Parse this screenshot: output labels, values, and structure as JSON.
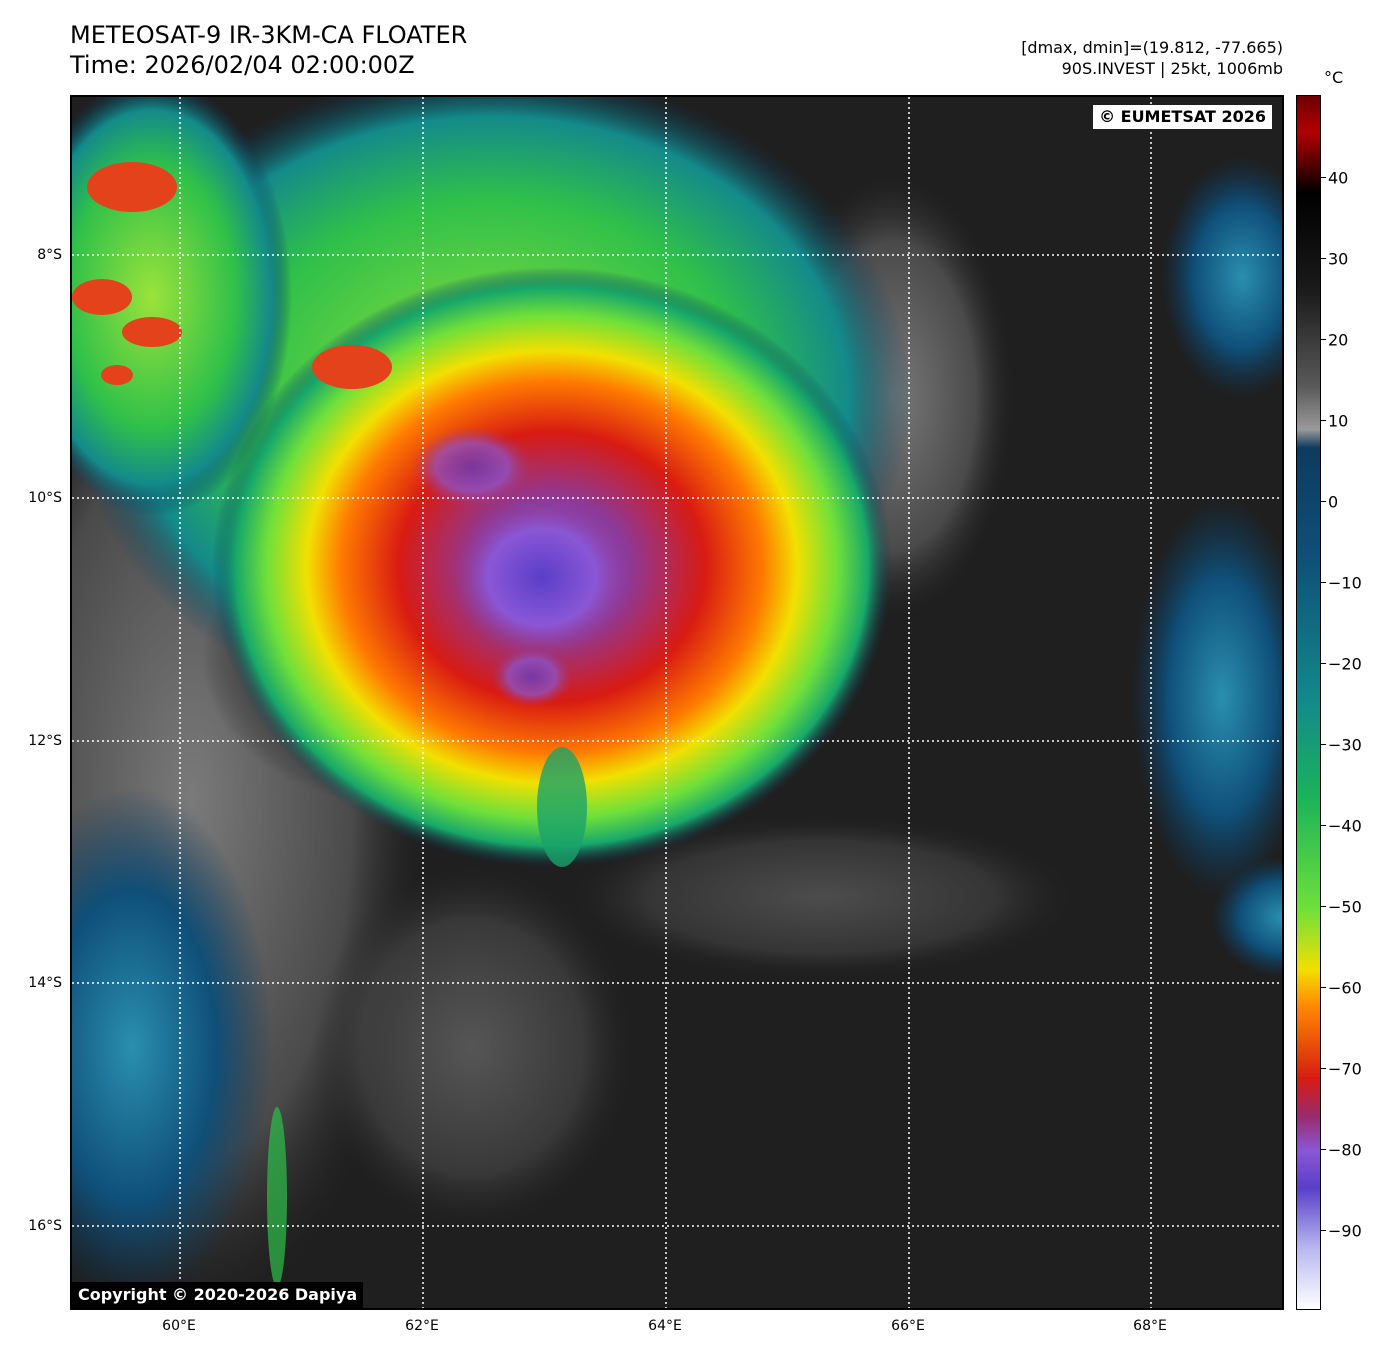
{
  "header": {
    "title_line1": "METEOSAT-9 IR-3KM-CA FLOATER",
    "title_line2": "Time: 2026/02/04 02:00:00Z",
    "info_line1": "[dmax, dmin]=(19.812, -77.665)",
    "info_line2": "90S.INVEST | 25kt, 1006mb"
  },
  "map": {
    "lat_labels": [
      "8°S",
      "10°S",
      "12°S",
      "14°S",
      "16°S"
    ],
    "lon_labels": [
      "60°E",
      "62°E",
      "64°E",
      "66°E",
      "68°E"
    ],
    "copyright_top": "© EUMETSAT 2026",
    "copyright_bottom": "Copyright © 2020-2026 Dapiya"
  },
  "colorbar": {
    "unit": "°C",
    "tick_labels": [
      "40",
      "30",
      "20",
      "10",
      "0",
      "−10",
      "−20",
      "−30",
      "−40",
      "−50",
      "−60",
      "−70",
      "−80",
      "−90"
    ],
    "colors": {
      "warm_top": "#6b0000",
      "black": "#000000",
      "gray": "#8a8a8a",
      "dark_blue": "#0d3b5e",
      "teal": "#138a8a",
      "green": "#2fbf4a",
      "lime": "#8ee33a",
      "yellow": "#f2e000",
      "orange": "#ff8a00",
      "red": "#d81b12",
      "purple": "#8a57d6",
      "white": "#ffffff"
    }
  }
}
